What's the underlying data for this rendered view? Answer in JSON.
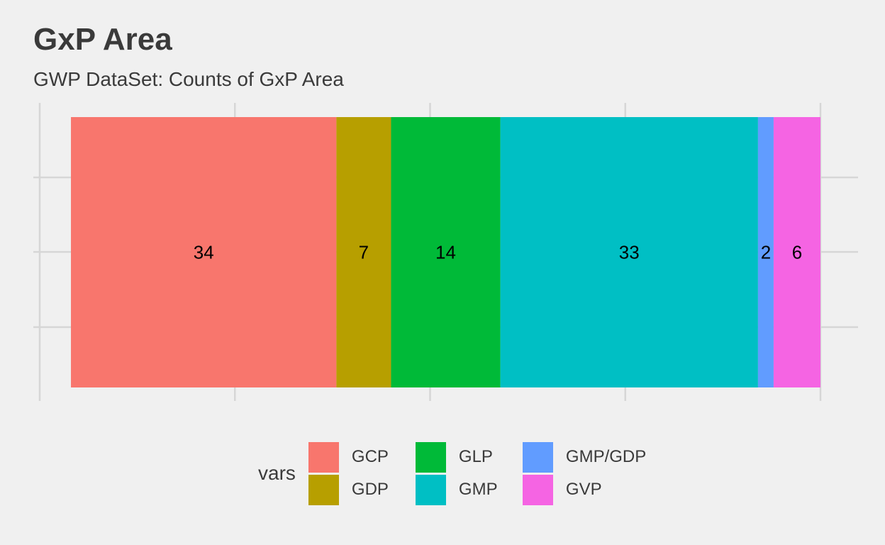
{
  "chart_data": {
    "type": "bar",
    "orientation": "horizontal-stacked",
    "title": "GxP Area",
    "subtitle": "GWP DataSet: Counts of GxP Area",
    "xlabel": "",
    "ylabel": "",
    "categories": [
      ""
    ],
    "series": [
      {
        "name": "GCP",
        "values": [
          34
        ],
        "color": "#F8766D"
      },
      {
        "name": "GDP",
        "values": [
          7
        ],
        "color": "#B79F00"
      },
      {
        "name": "GLP",
        "values": [
          14
        ],
        "color": "#00BA38"
      },
      {
        "name": "GMP",
        "values": [
          33
        ],
        "color": "#00BFC4"
      },
      {
        "name": "GMP/GDP",
        "values": [
          2
        ],
        "color": "#619CFF"
      },
      {
        "name": "GVP",
        "values": [
          6
        ],
        "color": "#F564E3"
      }
    ],
    "xlim": [
      -4,
      96
    ],
    "grid": true,
    "legend": {
      "title": "vars",
      "position": "bottom"
    }
  }
}
